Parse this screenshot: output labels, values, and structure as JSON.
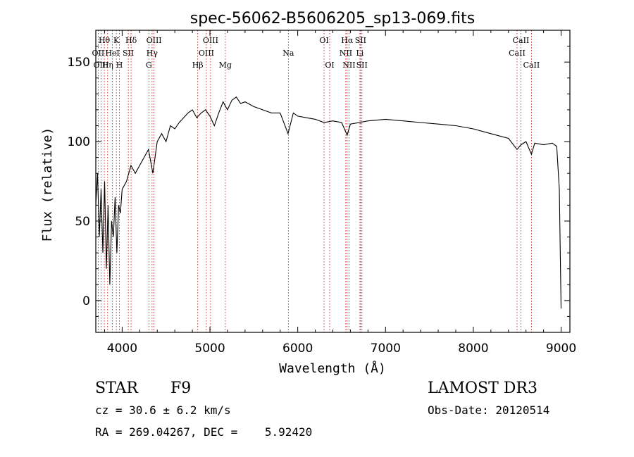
{
  "chart_data": {
    "type": "line",
    "title": "spec-56062-B5606205_sp13-069.fits",
    "xlabel": "Wavelength (Å)",
    "ylabel": "Flux (relative)",
    "xlim": [
      3700,
      9100
    ],
    "ylim": [
      -20,
      170
    ],
    "xticks": [
      4000,
      5000,
      6000,
      7000,
      8000,
      9000
    ],
    "yticks": [
      0,
      50,
      100,
      150
    ],
    "grid": false,
    "line_color": "#000000",
    "marker_color": "#c00000",
    "series": [
      {
        "x": [
          3700,
          3720,
          3740,
          3760,
          3780,
          3800,
          3820,
          3840,
          3860,
          3880,
          3900,
          3920,
          3940,
          3960,
          3980,
          4000,
          4050,
          4100,
          4150,
          4200,
          4250,
          4300,
          4350,
          4400,
          4450,
          4500,
          4550,
          4600,
          4650,
          4700,
          4750,
          4800,
          4850,
          4900,
          4950,
          5000,
          5050,
          5100,
          5150,
          5200,
          5250,
          5300,
          5350,
          5400,
          5500,
          5600,
          5700,
          5800,
          5890,
          5950,
          6000,
          6100,
          6200,
          6300,
          6400,
          6500,
          6563,
          6600,
          6700,
          6800,
          7000,
          7200,
          7400,
          7600,
          7800,
          8000,
          8200,
          8400,
          8498,
          8542,
          8600,
          8662,
          8700,
          8800,
          8900,
          8950,
          8980,
          9000
        ],
        "y": [
          60,
          80,
          40,
          70,
          30,
          75,
          20,
          60,
          10,
          50,
          40,
          65,
          30,
          60,
          55,
          70,
          75,
          85,
          80,
          85,
          90,
          95,
          80,
          100,
          105,
          100,
          110,
          108,
          112,
          115,
          118,
          120,
          115,
          118,
          120,
          116,
          110,
          118,
          125,
          120,
          126,
          128,
          124,
          125,
          122,
          120,
          118,
          118,
          105,
          118,
          116,
          115,
          114,
          112,
          113,
          112,
          104,
          111,
          112,
          113,
          114,
          113,
          112,
          111,
          110,
          108,
          105,
          102,
          95,
          98,
          100,
          92,
          99,
          98,
          99,
          97,
          70,
          -5
        ]
      }
    ],
    "lines": [
      {
        "label": "Hθ",
        "x": 3797,
        "row": 0
      },
      {
        "label": "OII",
        "x": 3727,
        "row": 1
      },
      {
        "label": "OIII",
        "x": 3760,
        "row": 2
      },
      {
        "label": "K",
        "x": 3934,
        "row": 0
      },
      {
        "label": "HeI",
        "x": 3889,
        "row": 1
      },
      {
        "label": "Hη",
        "x": 3835,
        "row": 2
      },
      {
        "label": "H",
        "x": 3969,
        "row": 2
      },
      {
        "label": "SII",
        "x": 4070,
        "row": 1
      },
      {
        "label": "Hδ",
        "x": 4102,
        "row": 0
      },
      {
        "label": "OIII",
        "x": 4363,
        "row": 0
      },
      {
        "label": "Hγ",
        "x": 4341,
        "row": 1
      },
      {
        "label": "G",
        "x": 4304,
        "row": 2
      },
      {
        "label": "Hβ",
        "x": 4861,
        "row": 2
      },
      {
        "label": "OIII",
        "x": 5007,
        "row": 0
      },
      {
        "label": "OIII",
        "x": 4959,
        "row": 1
      },
      {
        "label": "Mg",
        "x": 5175,
        "row": 2
      },
      {
        "label": "Na",
        "x": 5893,
        "row": 1
      },
      {
        "label": "OI",
        "x": 6300,
        "row": 0
      },
      {
        "label": "OI",
        "x": 6364,
        "row": 2
      },
      {
        "label": "Hα",
        "x": 6563,
        "row": 0
      },
      {
        "label": "NII",
        "x": 6548,
        "row": 1
      },
      {
        "label": "NII",
        "x": 6584,
        "row": 2
      },
      {
        "label": "SII",
        "x": 6716,
        "row": 0
      },
      {
        "label": "Li",
        "x": 6708,
        "row": 1
      },
      {
        "label": "SII",
        "x": 6731,
        "row": 2
      },
      {
        "label": "CaII",
        "x": 8542,
        "row": 0
      },
      {
        "label": "CaII",
        "x": 8498,
        "row": 1
      },
      {
        "label": "CaII",
        "x": 8662,
        "row": 2
      }
    ]
  },
  "info": {
    "object_class": "STAR",
    "subclass": "F9",
    "cz_line": "cz = 30.6 ± 6.2 km/s",
    "coords_line": "RA = 269.04267, DEC =    5.92420",
    "survey": "LAMOST DR3",
    "obs_date_line": "Obs-Date: 20120514"
  }
}
